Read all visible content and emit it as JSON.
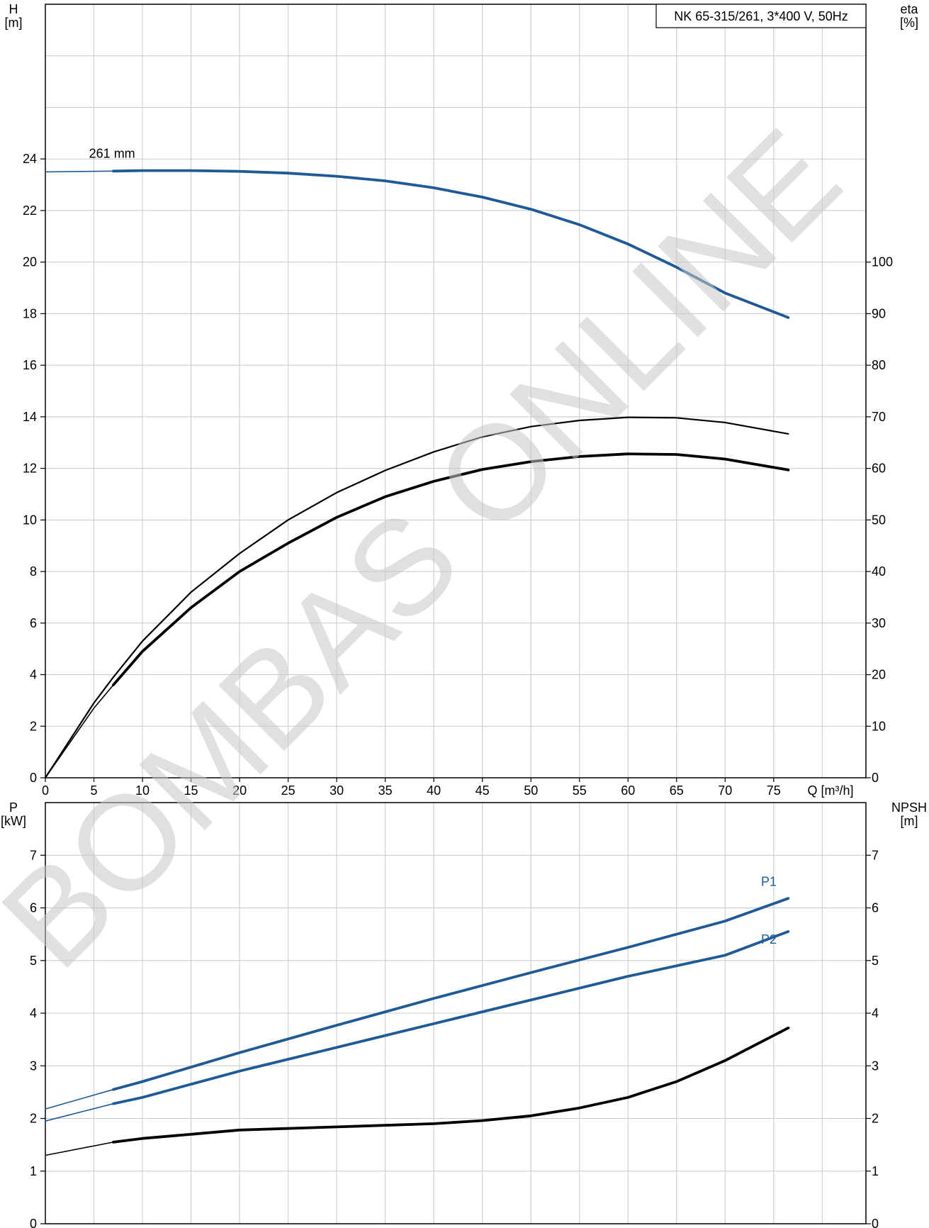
{
  "title": "NK 65-315/261, 3*400 V, 50Hz",
  "watermark": "BOMBAS ONLINE",
  "colors": {
    "blue": "#1f5a96",
    "black": "#000000",
    "grid": "#c8c8c8"
  },
  "chart_data": [
    {
      "type": "line",
      "name": "head-efficiency",
      "left_axis": {
        "label": "H",
        "unit": "[m]",
        "ticks": [
          0,
          2,
          4,
          6,
          8,
          10,
          12,
          14,
          16,
          18,
          20,
          22,
          24
        ],
        "range": [
          0,
          30
        ]
      },
      "right_axis": {
        "label": "eta",
        "unit": "[%]",
        "ticks": [
          0,
          10,
          20,
          30,
          40,
          50,
          60,
          70,
          80,
          90,
          100
        ],
        "range": [
          0,
          150
        ]
      },
      "x_axis": {
        "label": "Q [m³/h]",
        "ticks": [
          0,
          5,
          10,
          15,
          20,
          25,
          30,
          35,
          40,
          45,
          50,
          55,
          60,
          65,
          70,
          75
        ],
        "range": [
          0,
          84.5
        ]
      },
      "grid": true,
      "series": [
        {
          "name": "261 mm",
          "axis": "left",
          "color": "#1f5a96",
          "thick_from": 7,
          "points": [
            [
              0,
              23.5
            ],
            [
              7,
              23.53
            ],
            [
              10,
              23.55
            ],
            [
              15,
              23.55
            ],
            [
              20,
              23.52
            ],
            [
              25,
              23.45
            ],
            [
              30,
              23.33
            ],
            [
              35,
              23.15
            ],
            [
              40,
              22.88
            ],
            [
              45,
              22.52
            ],
            [
              50,
              22.05
            ],
            [
              55,
              21.45
            ],
            [
              60,
              20.7
            ],
            [
              65,
              19.8
            ],
            [
              70,
              18.8
            ],
            [
              76.5,
              17.85
            ]
          ]
        },
        {
          "name": "eta upper",
          "axis": "right",
          "color": "#000000",
          "thick_from": null,
          "points": [
            [
              0,
              0
            ],
            [
              5,
              14.5
            ],
            [
              7,
              19.5
            ],
            [
              10,
              26.5
            ],
            [
              15,
              36
            ],
            [
              20,
              43.5
            ],
            [
              25,
              50
            ],
            [
              30,
              55.3
            ],
            [
              35,
              59.6
            ],
            [
              40,
              63.2
            ],
            [
              45,
              66.1
            ],
            [
              50,
              68.1
            ],
            [
              55,
              69.3
            ],
            [
              60,
              69.9
            ],
            [
              65,
              69.8
            ],
            [
              70,
              68.9
            ],
            [
              76.5,
              66.7
            ]
          ]
        },
        {
          "name": "eta",
          "axis": "right",
          "color": "#000000",
          "thick_from": 7,
          "points": [
            [
              0,
              0
            ],
            [
              5,
              13.5
            ],
            [
              7,
              18
            ],
            [
              10,
              24.5
            ],
            [
              15,
              33
            ],
            [
              20,
              40
            ],
            [
              25,
              45.5
            ],
            [
              30,
              50.5
            ],
            [
              35,
              54.5
            ],
            [
              40,
              57.5
            ],
            [
              45,
              59.8
            ],
            [
              50,
              61.3
            ],
            [
              55,
              62.3
            ],
            [
              60,
              62.8
            ],
            [
              65,
              62.7
            ],
            [
              70,
              61.8
            ],
            [
              76.5,
              59.7
            ]
          ]
        }
      ]
    },
    {
      "type": "line",
      "name": "power-npsh",
      "left_axis": {
        "label": "P",
        "unit": "[kW]",
        "ticks": [
          0,
          1,
          2,
          3,
          4,
          5,
          6,
          7
        ],
        "range": [
          0,
          8
        ]
      },
      "right_axis": {
        "label": "NPSH",
        "unit": "[m]",
        "ticks": [
          0,
          1,
          2,
          3,
          4,
          5,
          6,
          7
        ],
        "range": [
          0,
          8
        ]
      },
      "x_axis": {
        "range": [
          0,
          84.5
        ]
      },
      "grid": true,
      "series": [
        {
          "name": "P1",
          "axis": "left",
          "color": "#1f5a96",
          "thick_from": 7,
          "points": [
            [
              0,
              2.18
            ],
            [
              7,
              2.55
            ],
            [
              10,
              2.7
            ],
            [
              20,
              3.25
            ],
            [
              30,
              3.77
            ],
            [
              40,
              4.28
            ],
            [
              50,
              4.77
            ],
            [
              60,
              5.25
            ],
            [
              70,
              5.75
            ],
            [
              76.5,
              6.18
            ]
          ]
        },
        {
          "name": "P2",
          "axis": "left",
          "color": "#1f5a96",
          "thick_from": 7,
          "points": [
            [
              0,
              1.95
            ],
            [
              7,
              2.28
            ],
            [
              10,
              2.4
            ],
            [
              20,
              2.9
            ],
            [
              30,
              3.35
            ],
            [
              40,
              3.8
            ],
            [
              50,
              4.25
            ],
            [
              60,
              4.7
            ],
            [
              70,
              5.1
            ],
            [
              76.5,
              5.55
            ]
          ]
        },
        {
          "name": "NPSH",
          "axis": "right",
          "color": "#000000",
          "thick_from": 7,
          "points": [
            [
              0,
              1.3
            ],
            [
              7,
              1.55
            ],
            [
              10,
              1.62
            ],
            [
              15,
              1.7
            ],
            [
              20,
              1.78
            ],
            [
              30,
              1.84
            ],
            [
              40,
              1.9
            ],
            [
              45,
              1.96
            ],
            [
              50,
              2.05
            ],
            [
              55,
              2.2
            ],
            [
              60,
              2.4
            ],
            [
              65,
              2.7
            ],
            [
              70,
              3.1
            ],
            [
              76.5,
              3.72
            ]
          ]
        }
      ]
    }
  ]
}
